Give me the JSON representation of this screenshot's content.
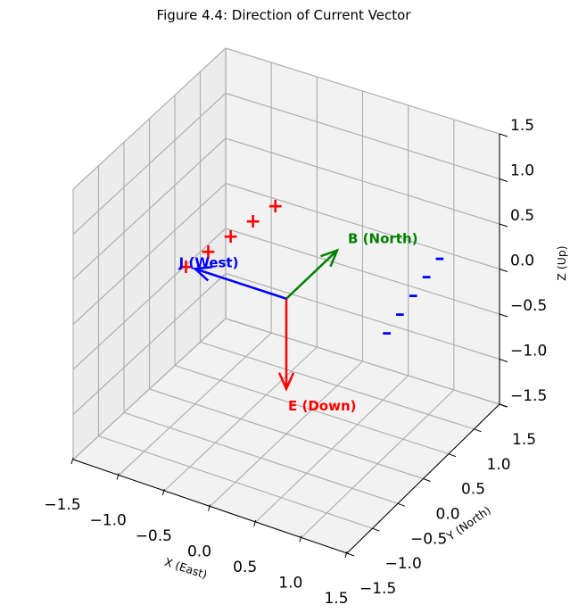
{
  "chart_data": {
    "type": "3d-vector",
    "title": "Figure 4.4: Direction of Current Vector",
    "xlabel": "X (East)",
    "ylabel": "Y (North)",
    "zlabel": "Z (Up)",
    "xlim": [
      -1.5,
      1.5
    ],
    "ylim": [
      -1.5,
      1.5
    ],
    "zlim": [
      -1.5,
      1.5
    ],
    "xticks": [
      "−1.5",
      "−1.0",
      "−0.5",
      "0.0",
      "0.5",
      "1.0",
      "1.5"
    ],
    "yticks": [
      "−1.5",
      "−1.0",
      "−0.5",
      "0.0",
      "0.5",
      "1.0",
      "1.5"
    ],
    "zticks": [
      "−1.5",
      "−1.0",
      "−0.5",
      "0.0",
      "0.5",
      "1.0",
      "1.5"
    ],
    "grid": true,
    "vectors": [
      {
        "label": "B (North)",
        "color": "#008000",
        "start": [
          0,
          0,
          0
        ],
        "end": [
          0,
          1,
          0
        ]
      },
      {
        "label": "E (Down)",
        "color": "#ff0000",
        "start": [
          0,
          0,
          0
        ],
        "end": [
          0,
          0,
          -1
        ]
      },
      {
        "label": "J (West)",
        "color": "#0000ff",
        "start": [
          0,
          0,
          0
        ],
        "end": [
          -1,
          0,
          0
        ]
      }
    ],
    "charges": [
      {
        "symbol": "+",
        "color": "#ff0000",
        "points": [
          [
            -1.1,
            0.0,
            0.0
          ],
          [
            -1.05,
            0.35,
            0.0
          ],
          [
            -1.0,
            0.7,
            0.0
          ],
          [
            -0.95,
            1.05,
            0.0
          ],
          [
            -0.9,
            1.4,
            0.0
          ]
        ]
      },
      {
        "symbol": "–",
        "color": "#0000ff",
        "points": [
          [
            1.1,
            0.0,
            0.0
          ],
          [
            1.05,
            0.35,
            0.0
          ],
          [
            1.0,
            0.7,
            0.0
          ],
          [
            0.95,
            1.05,
            0.0
          ],
          [
            0.9,
            1.4,
            0.0
          ]
        ]
      }
    ]
  }
}
